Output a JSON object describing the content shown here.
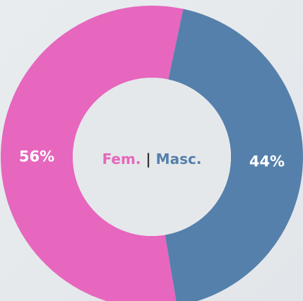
{
  "chart_data": {
    "type": "donut",
    "categories": [
      "Fem.",
      "Masc."
    ],
    "values": [
      56,
      44
    ],
    "value_labels": [
      "56%",
      "44%"
    ],
    "colors": [
      "#e667bd",
      "#5580ab"
    ],
    "center_separator": "|"
  }
}
